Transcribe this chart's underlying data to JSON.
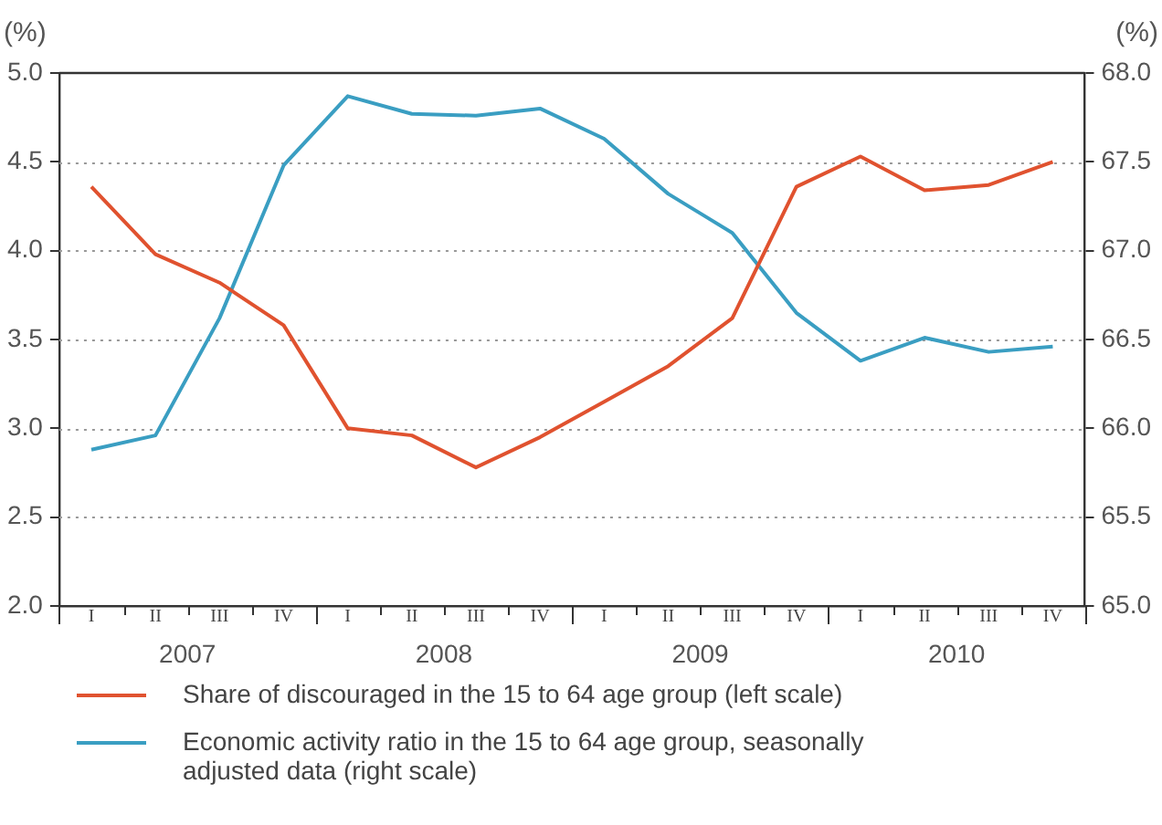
{
  "chart_data": {
    "type": "line",
    "ylabel": "(%)",
    "y2label": "(%)",
    "categories": [
      "I",
      "II",
      "III",
      "IV",
      "I",
      "II",
      "III",
      "IV",
      "I",
      "II",
      "III",
      "IV",
      "I",
      "II",
      "III",
      "IV"
    ],
    "annotations": [
      "2007",
      "2008",
      "2009",
      "2010"
    ],
    "series": [
      {
        "name": "Share of discouraged in the 15 to 64 age group (left scale)",
        "color": "#e0522f",
        "values": [
          4.36,
          3.98,
          3.82,
          3.58,
          3.0,
          2.96,
          2.78,
          2.95,
          3.15,
          3.35,
          3.62,
          4.36,
          4.53,
          4.34,
          4.37,
          4.5
        ]
      },
      {
        "name": "Economic activity ratio in the 15 to 64 age group, seasonally adjusted data (right scale)",
        "color": "#3a9ec2",
        "axis": "y2",
        "values": [
          65.88,
          65.96,
          66.62,
          67.48,
          67.87,
          67.77,
          67.76,
          67.8,
          67.63,
          67.32,
          67.1,
          66.65,
          66.38,
          66.51,
          66.43,
          66.46
        ]
      }
    ],
    "ylim": [
      2,
      5
    ],
    "yticks": [
      {
        "value": 2,
        "label": "2.0"
      },
      {
        "value": 2.5,
        "label": "2.5"
      },
      {
        "value": 3,
        "label": "3.0"
      },
      {
        "value": 3.5,
        "label": "3.5"
      },
      {
        "value": 4,
        "label": "4.0"
      },
      {
        "value": 4.5,
        "label": "4.5"
      },
      {
        "value": 5,
        "label": "5.0"
      }
    ],
    "y2lim": [
      65,
      68
    ],
    "y2ticks": [
      {
        "value": 65,
        "label": "65.0"
      },
      {
        "value": 65.5,
        "label": "65.5"
      },
      {
        "value": 66,
        "label": "66.0"
      },
      {
        "value": 66.5,
        "label": "66.5"
      },
      {
        "value": 67,
        "label": "67.0"
      },
      {
        "value": 67.5,
        "label": "67.5"
      },
      {
        "value": 68,
        "label": "68.0"
      }
    ],
    "grid": "y",
    "legend": "bottom",
    "marker": "none",
    "line_style": "solid"
  }
}
